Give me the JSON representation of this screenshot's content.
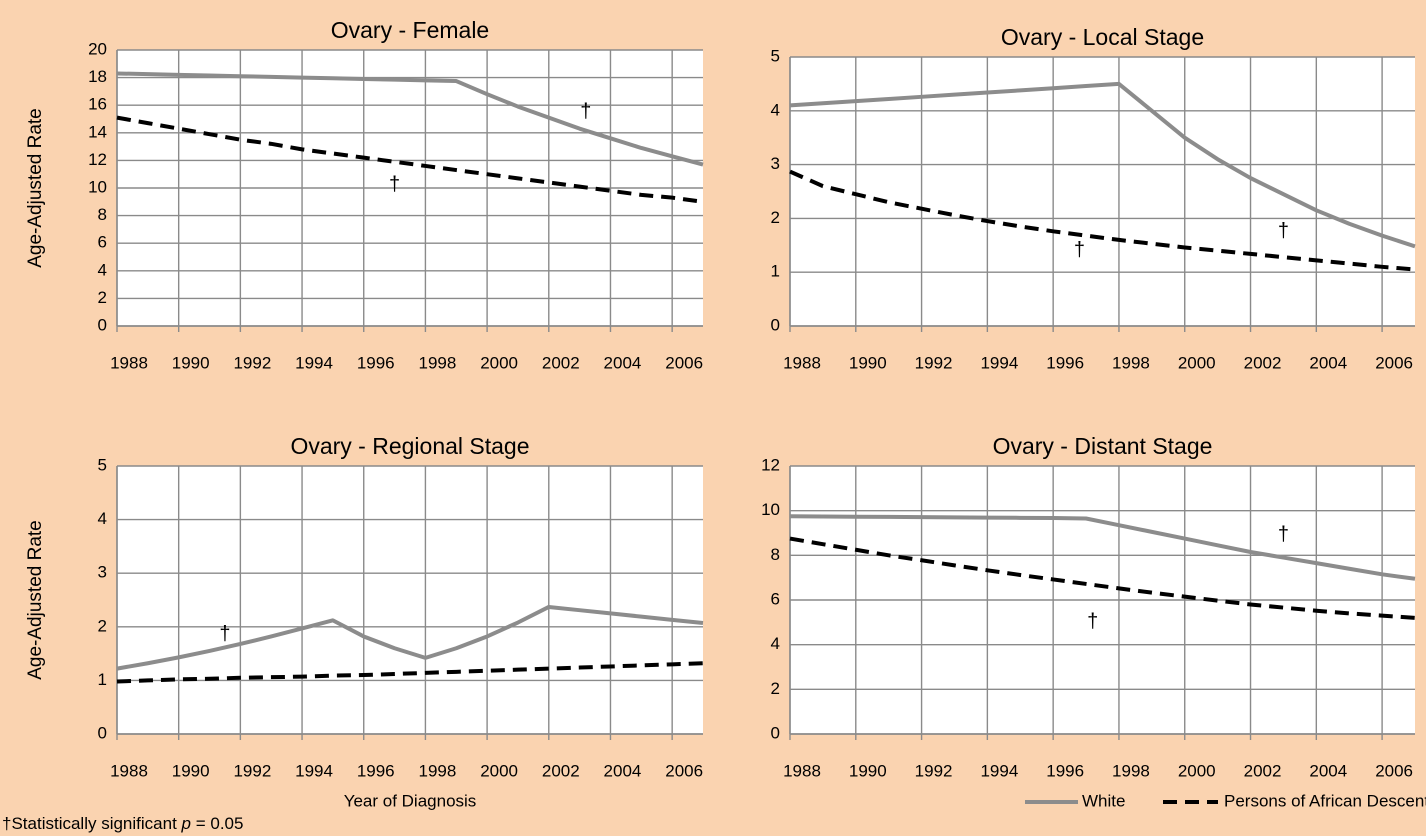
{
  "chart_data": [
    {
      "type": "line",
      "title": "Ovary - Female",
      "ylabel": "Age-Adjusted Rate",
      "x": [
        1988,
        1989,
        1990,
        1991,
        1992,
        1993,
        1994,
        1995,
        1996,
        1997,
        1998,
        1999,
        2000,
        2001,
        2002,
        2003,
        2004,
        2005,
        2006,
        2007
      ],
      "xlim": [
        1988,
        2007
      ],
      "xticks": [
        1988,
        1990,
        1992,
        1994,
        1996,
        1998,
        2000,
        2002,
        2004,
        2006
      ],
      "ylim": [
        0,
        20
      ],
      "yticks": [
        0,
        2,
        4,
        6,
        8,
        10,
        12,
        14,
        16,
        18,
        20
      ],
      "grid": true,
      "series": [
        {
          "name": "White",
          "color": "#8c8c8c",
          "line_style": "solid",
          "values": [
            18.3,
            18.25,
            18.2,
            18.15,
            18.1,
            18.05,
            18.0,
            17.95,
            17.9,
            17.85,
            17.8,
            17.75,
            16.8,
            15.9,
            15.1,
            14.3,
            13.6,
            12.9,
            12.3,
            11.7
          ]
        },
        {
          "name": "Persons of African Descent",
          "color": "#000000",
          "line_style": "dashed",
          "values": [
            15.1,
            14.7,
            14.3,
            13.9,
            13.5,
            13.2,
            12.8,
            12.5,
            12.2,
            11.9,
            11.6,
            11.3,
            11.0,
            10.7,
            10.4,
            10.1,
            9.8,
            9.5,
            9.3,
            9.0
          ]
        }
      ],
      "annotations": [
        {
          "text": "†",
          "x": 1997,
          "y": 10.2
        },
        {
          "text": "†",
          "x": 2003.2,
          "y": 15.5
        }
      ]
    },
    {
      "type": "line",
      "title": "Ovary - Local Stage",
      "x": [
        1988,
        1989,
        1990,
        1991,
        1992,
        1993,
        1994,
        1995,
        1996,
        1997,
        1998,
        1999,
        2000,
        2001,
        2002,
        2003,
        2004,
        2005,
        2006,
        2007
      ],
      "xlim": [
        1988,
        2007
      ],
      "xticks": [
        1988,
        1990,
        1992,
        1994,
        1996,
        1998,
        2000,
        2002,
        2004,
        2006
      ],
      "ylim": [
        0,
        5
      ],
      "yticks": [
        0,
        1,
        2,
        3,
        4,
        5
      ],
      "grid": true,
      "series": [
        {
          "name": "White",
          "color": "#8c8c8c",
          "line_style": "solid",
          "values": [
            4.1,
            4.14,
            4.18,
            4.22,
            4.26,
            4.3,
            4.34,
            4.38,
            4.42,
            4.46,
            4.5,
            4.0,
            3.5,
            3.1,
            2.75,
            2.45,
            2.15,
            1.9,
            1.68,
            1.48
          ]
        },
        {
          "name": "Persons of African Descent",
          "color": "#000000",
          "line_style": "dashed",
          "values": [
            2.87,
            2.6,
            2.45,
            2.3,
            2.18,
            2.06,
            1.95,
            1.85,
            1.76,
            1.68,
            1.6,
            1.53,
            1.46,
            1.4,
            1.34,
            1.28,
            1.22,
            1.16,
            1.1,
            1.05
          ]
        }
      ],
      "annotations": [
        {
          "text": "†",
          "x": 1996.8,
          "y": 1.4
        },
        {
          "text": "†",
          "x": 2003,
          "y": 1.75
        }
      ]
    },
    {
      "type": "line",
      "title": "Ovary - Regional Stage",
      "ylabel": "Age-Adjusted Rate",
      "xlabel": "Year of Diagnosis",
      "x": [
        1988,
        1989,
        1990,
        1991,
        1992,
        1993,
        1994,
        1995,
        1996,
        1997,
        1998,
        1999,
        2000,
        2001,
        2002,
        2003,
        2004,
        2005,
        2006,
        2007
      ],
      "xlim": [
        1988,
        2007
      ],
      "xticks": [
        1988,
        1990,
        1992,
        1994,
        1996,
        1998,
        2000,
        2002,
        2004,
        2006
      ],
      "ylim": [
        0,
        5
      ],
      "yticks": [
        0,
        1,
        2,
        3,
        4,
        5
      ],
      "grid": true,
      "series": [
        {
          "name": "White",
          "color": "#8c8c8c",
          "line_style": "solid",
          "values": [
            1.22,
            1.32,
            1.43,
            1.55,
            1.68,
            1.82,
            1.97,
            2.12,
            1.82,
            1.6,
            1.42,
            1.6,
            1.82,
            2.08,
            2.37,
            2.31,
            2.25,
            2.19,
            2.13,
            2.07
          ]
        },
        {
          "name": "Persons of African Descent",
          "color": "#000000",
          "line_style": "dashed",
          "values": [
            0.98,
            1.0,
            1.02,
            1.03,
            1.05,
            1.06,
            1.07,
            1.09,
            1.1,
            1.12,
            1.14,
            1.16,
            1.18,
            1.2,
            1.22,
            1.24,
            1.26,
            1.28,
            1.3,
            1.32
          ]
        }
      ],
      "annotations": [
        {
          "text": "†",
          "x": 1991.5,
          "y": 1.85
        }
      ]
    },
    {
      "type": "line",
      "title": "Ovary - Distant Stage",
      "x": [
        1988,
        1989,
        1990,
        1991,
        1992,
        1993,
        1994,
        1995,
        1996,
        1997,
        1998,
        1999,
        2000,
        2001,
        2002,
        2003,
        2004,
        2005,
        2006,
        2007
      ],
      "xlim": [
        1988,
        2007
      ],
      "xticks": [
        1988,
        1990,
        1992,
        1994,
        1996,
        1998,
        2000,
        2002,
        2004,
        2006
      ],
      "ylim": [
        0,
        12
      ],
      "yticks": [
        0,
        2,
        4,
        6,
        8,
        10,
        12
      ],
      "grid": true,
      "series": [
        {
          "name": "White",
          "color": "#8c8c8c",
          "line_style": "solid",
          "values": [
            9.75,
            9.74,
            9.73,
            9.72,
            9.71,
            9.7,
            9.69,
            9.68,
            9.67,
            9.65,
            9.35,
            9.05,
            8.75,
            8.45,
            8.15,
            7.9,
            7.65,
            7.4,
            7.15,
            6.95
          ]
        },
        {
          "name": "Persons of African Descent",
          "color": "#000000",
          "line_style": "dashed",
          "values": [
            8.75,
            8.5,
            8.25,
            8.0,
            7.78,
            7.55,
            7.33,
            7.12,
            6.92,
            6.72,
            6.52,
            6.33,
            6.15,
            5.97,
            5.8,
            5.66,
            5.52,
            5.4,
            5.3,
            5.2
          ]
        }
      ],
      "annotations": [
        {
          "text": "†",
          "x": 1997.2,
          "y": 5.0
        },
        {
          "text": "†",
          "x": 2003,
          "y": 8.9
        }
      ]
    }
  ],
  "footnote": {
    "before": "†Statistically significant ",
    "italic": "p",
    "after": " = 0.05"
  }
}
